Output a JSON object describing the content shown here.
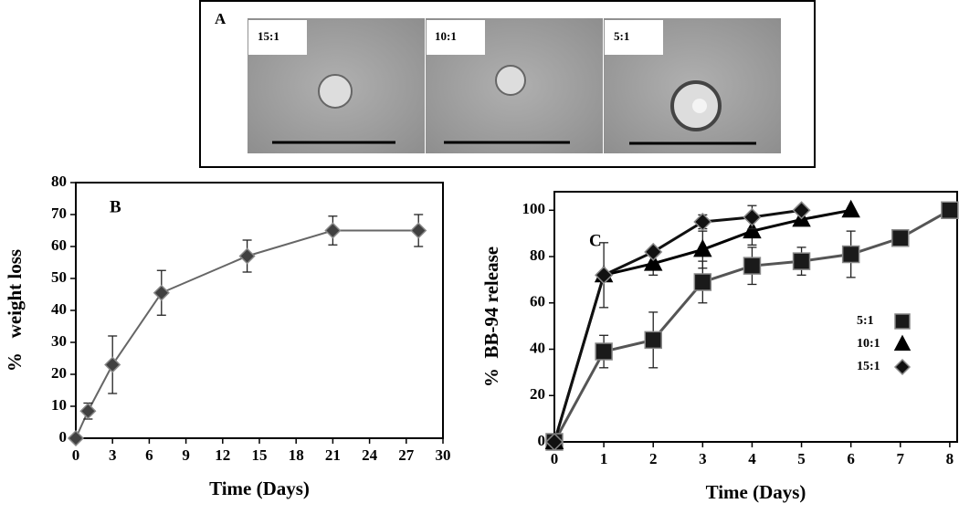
{
  "panel_a": {
    "label": "A",
    "images": [
      {
        "label": "15:1"
      },
      {
        "label": "10:1"
      },
      {
        "label": "5:1"
      }
    ]
  },
  "chart_data": [
    {
      "type": "line",
      "panel_label": "B",
      "xlabel": "Time (Days)",
      "ylabel": "%   weight loss",
      "xlim": [
        0,
        30
      ],
      "xticks": [
        0,
        3,
        6,
        9,
        12,
        15,
        18,
        21,
        24,
        27,
        30
      ],
      "ylim": [
        0,
        80
      ],
      "yticks": [
        0,
        10,
        20,
        30,
        40,
        50,
        60,
        70,
        80
      ],
      "series": [
        {
          "x": [
            0,
            1,
            3,
            7,
            14,
            21,
            28
          ],
          "values": [
            0,
            8.5,
            23,
            45.5,
            57,
            65,
            65
          ],
          "errors": [
            null,
            2.5,
            9,
            7,
            5,
            4.5,
            5
          ],
          "color": "#404040",
          "line_color": "#666666",
          "marker": "diamond"
        }
      ]
    },
    {
      "type": "line",
      "panel_label": "C",
      "xlabel": "Time (Days)",
      "ylabel": "%  BB-94 release",
      "xlim": [
        0,
        8.15
      ],
      "xticks": [
        0,
        1,
        2,
        3,
        4,
        5,
        6,
        7,
        8
      ],
      "ylim": [
        0,
        108
      ],
      "yticks": [
        0,
        20,
        40,
        60,
        80,
        100
      ],
      "legend": "center right",
      "series": [
        {
          "name": "5:1",
          "x": [
            0,
            1,
            2,
            3,
            4,
            5,
            6,
            7,
            8
          ],
          "values": [
            0,
            39,
            44,
            69,
            76,
            78,
            81,
            88,
            100
          ],
          "errors": [
            null,
            7,
            12,
            9,
            8,
            6,
            10,
            null,
            null
          ],
          "color": "#1a1a1a",
          "line_color": "#555555",
          "marker": "square"
        },
        {
          "name": "10:1",
          "x": [
            0,
            1,
            2,
            3,
            4,
            5,
            6
          ],
          "values": [
            0,
            72,
            77,
            83,
            91,
            96,
            100
          ],
          "errors": [
            null,
            null,
            5,
            8,
            6,
            null,
            null
          ],
          "color": "#000000",
          "line_color": "#000000",
          "marker": "triangle"
        },
        {
          "name": "15:1",
          "x": [
            0,
            1,
            2,
            3,
            4,
            5
          ],
          "values": [
            0,
            72,
            82,
            95,
            97,
            100
          ],
          "errors": [
            null,
            14,
            null,
            3,
            5,
            null
          ],
          "color": "#111111",
          "line_color": "#111111",
          "marker": "diamond"
        }
      ]
    }
  ]
}
